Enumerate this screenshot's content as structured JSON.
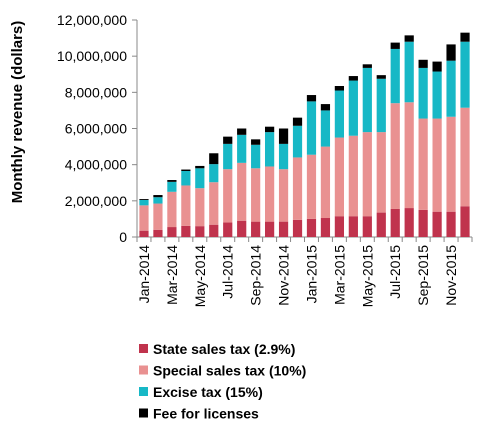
{
  "chart_data": {
    "type": "bar",
    "stacked": true,
    "title": "",
    "xlabel": "",
    "ylabel": "Monthly revenue (dollars)",
    "ylim": [
      0,
      12000000
    ],
    "yticks": [
      0,
      2000000,
      4000000,
      6000000,
      8000000,
      10000000,
      12000000
    ],
    "ytick_labels": [
      "0",
      "2,000,000",
      "4,000,000",
      "6,000,000",
      "8,000,000",
      "10,000,000",
      "12,000,000"
    ],
    "categories": [
      "Jan-2014",
      "Feb-2014",
      "Mar-2014",
      "Apr-2014",
      "May-2014",
      "Jun-2014",
      "Jul-2014",
      "Aug-2014",
      "Sep-2014",
      "Oct-2014",
      "Nov-2014",
      "Dec-2014",
      "Jan-2015",
      "Feb-2015",
      "Mar-2015",
      "Apr-2015",
      "May-2015",
      "Jun-2015",
      "Jul-2015",
      "Aug-2015",
      "Sep-2015",
      "Oct-2015",
      "Nov-2015",
      "Dec-2015"
    ],
    "visible_tick_labels": [
      "Jan-2014",
      "Mar-2014",
      "May-2014",
      "Jul-2014",
      "Sep-2014",
      "Nov-2014",
      "Jan-2015",
      "Mar-2015",
      "May-2015",
      "Jul-2015",
      "Sep-2015",
      "Nov-2015"
    ],
    "legend_position": "bottom-left",
    "grid": false,
    "series": [
      {
        "name": "State sales tax (2.9%)",
        "color": "#c0334d",
        "values": [
          350000,
          400000,
          550000,
          620000,
          600000,
          680000,
          800000,
          900000,
          850000,
          850000,
          850000,
          950000,
          1000000,
          1050000,
          1150000,
          1150000,
          1150000,
          1350000,
          1550000,
          1600000,
          1500000,
          1400000,
          1400000,
          1700000
        ]
      },
      {
        "name": "Special sales tax (10%)",
        "color": "#e99191",
        "values": [
          1400000,
          1450000,
          1950000,
          2230000,
          2100000,
          2350000,
          2950000,
          3200000,
          2950000,
          3050000,
          2900000,
          3450000,
          3550000,
          3950000,
          4350000,
          4450000,
          4650000,
          4450000,
          5850000,
          5850000,
          5050000,
          5150000,
          5250000,
          5450000
        ]
      },
      {
        "name": "Excise tax (15%)",
        "color": "#17b8c6",
        "values": [
          300000,
          350000,
          550000,
          800000,
          1100000,
          1000000,
          1400000,
          1550000,
          1300000,
          1900000,
          1400000,
          1750000,
          2950000,
          2000000,
          2600000,
          3050000,
          3550000,
          2950000,
          3000000,
          3350000,
          2800000,
          2600000,
          3100000,
          3650000
        ]
      },
      {
        "name": "Fee for licenses",
        "color": "#000000",
        "values": [
          50000,
          120000,
          100000,
          80000,
          130000,
          600000,
          400000,
          350000,
          300000,
          300000,
          850000,
          450000,
          350000,
          350000,
          250000,
          250000,
          200000,
          200000,
          350000,
          350000,
          450000,
          550000,
          900000,
          500000
        ]
      }
    ]
  }
}
